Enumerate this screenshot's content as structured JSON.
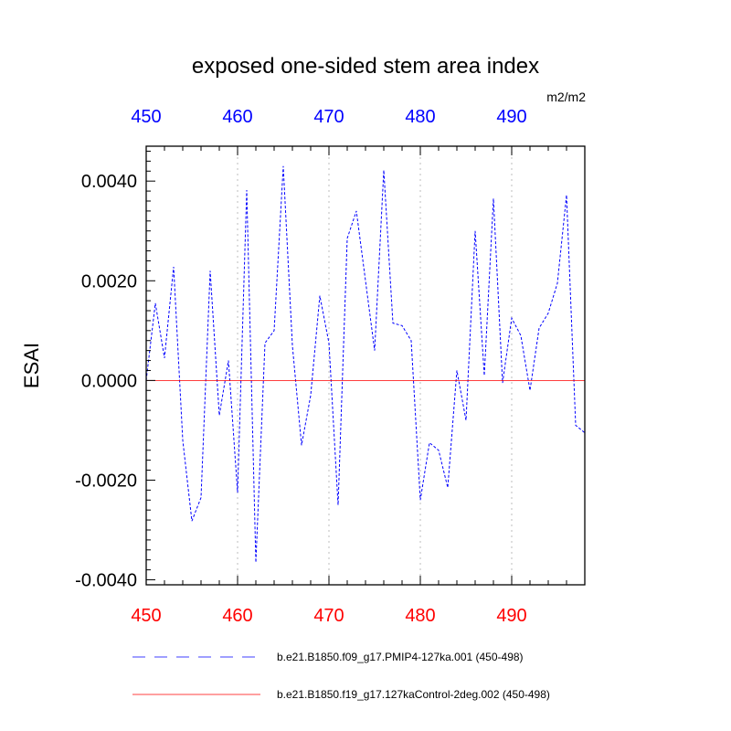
{
  "chart_data": {
    "type": "line",
    "title": "exposed one-sided stem area index",
    "units": "m2/m2",
    "ylabel": "ESAI",
    "xlabel": "",
    "xlim": [
      450,
      498
    ],
    "ylim": [
      -0.0041,
      0.0047
    ],
    "xticks": [
      450,
      460,
      470,
      480,
      490
    ],
    "xtick_labels": [
      "450",
      "460",
      "470",
      "480",
      "490"
    ],
    "yticks": [
      -0.004,
      -0.002,
      0.0,
      0.002,
      0.004
    ],
    "ytick_labels": [
      "-0.0040",
      "-0.0020",
      "0.0000",
      "0.0020",
      "0.0040"
    ],
    "grid": "vertical dotted at major x ticks",
    "legend_position": "bottom",
    "top_axis_color": "#0000ff",
    "bottom_axis_color": "#ff0000",
    "series": [
      {
        "name": "b.e21.B1850.f09_g17.PMIP4-127ka.001 (450-498)",
        "color": "#0000ff",
        "style": "dashed",
        "x": [
          450,
          451,
          452,
          453,
          454,
          455,
          456,
          457,
          458,
          459,
          460,
          461,
          462,
          463,
          464,
          465,
          466,
          467,
          468,
          469,
          470,
          471,
          472,
          473,
          474,
          475,
          476,
          477,
          478,
          479,
          480,
          481,
          482,
          483,
          484,
          485,
          486,
          487,
          488,
          489,
          490,
          491,
          492,
          493,
          494,
          495,
          496,
          497,
          498
        ],
        "y": [
          0.0,
          0.00155,
          0.00045,
          0.00228,
          -0.0012,
          -0.00282,
          -0.00235,
          0.0022,
          -0.0007,
          0.0004,
          -0.00225,
          0.00382,
          -0.00365,
          0.00075,
          0.001,
          0.0043,
          0.0007,
          -0.0013,
          -0.0003,
          0.0017,
          0.00075,
          -0.0025,
          0.00285,
          0.0034,
          0.002,
          0.0006,
          0.00422,
          0.00115,
          0.0011,
          0.0008,
          -0.0024,
          -0.00125,
          -0.0014,
          -0.00215,
          0.0002,
          -0.0008,
          0.003,
          0.0001,
          0.00365,
          -5e-05,
          0.00125,
          0.0009,
          -0.0002,
          0.00105,
          0.00135,
          0.00195,
          0.00372,
          -0.0009,
          -0.00105
        ]
      },
      {
        "name": "b.e21.B1850.f19_g17.127kaControl-2deg.002 (450-498)",
        "color": "#ff0000",
        "style": "solid",
        "x": [
          450,
          498
        ],
        "y": [
          0.0,
          0.0
        ]
      }
    ]
  }
}
